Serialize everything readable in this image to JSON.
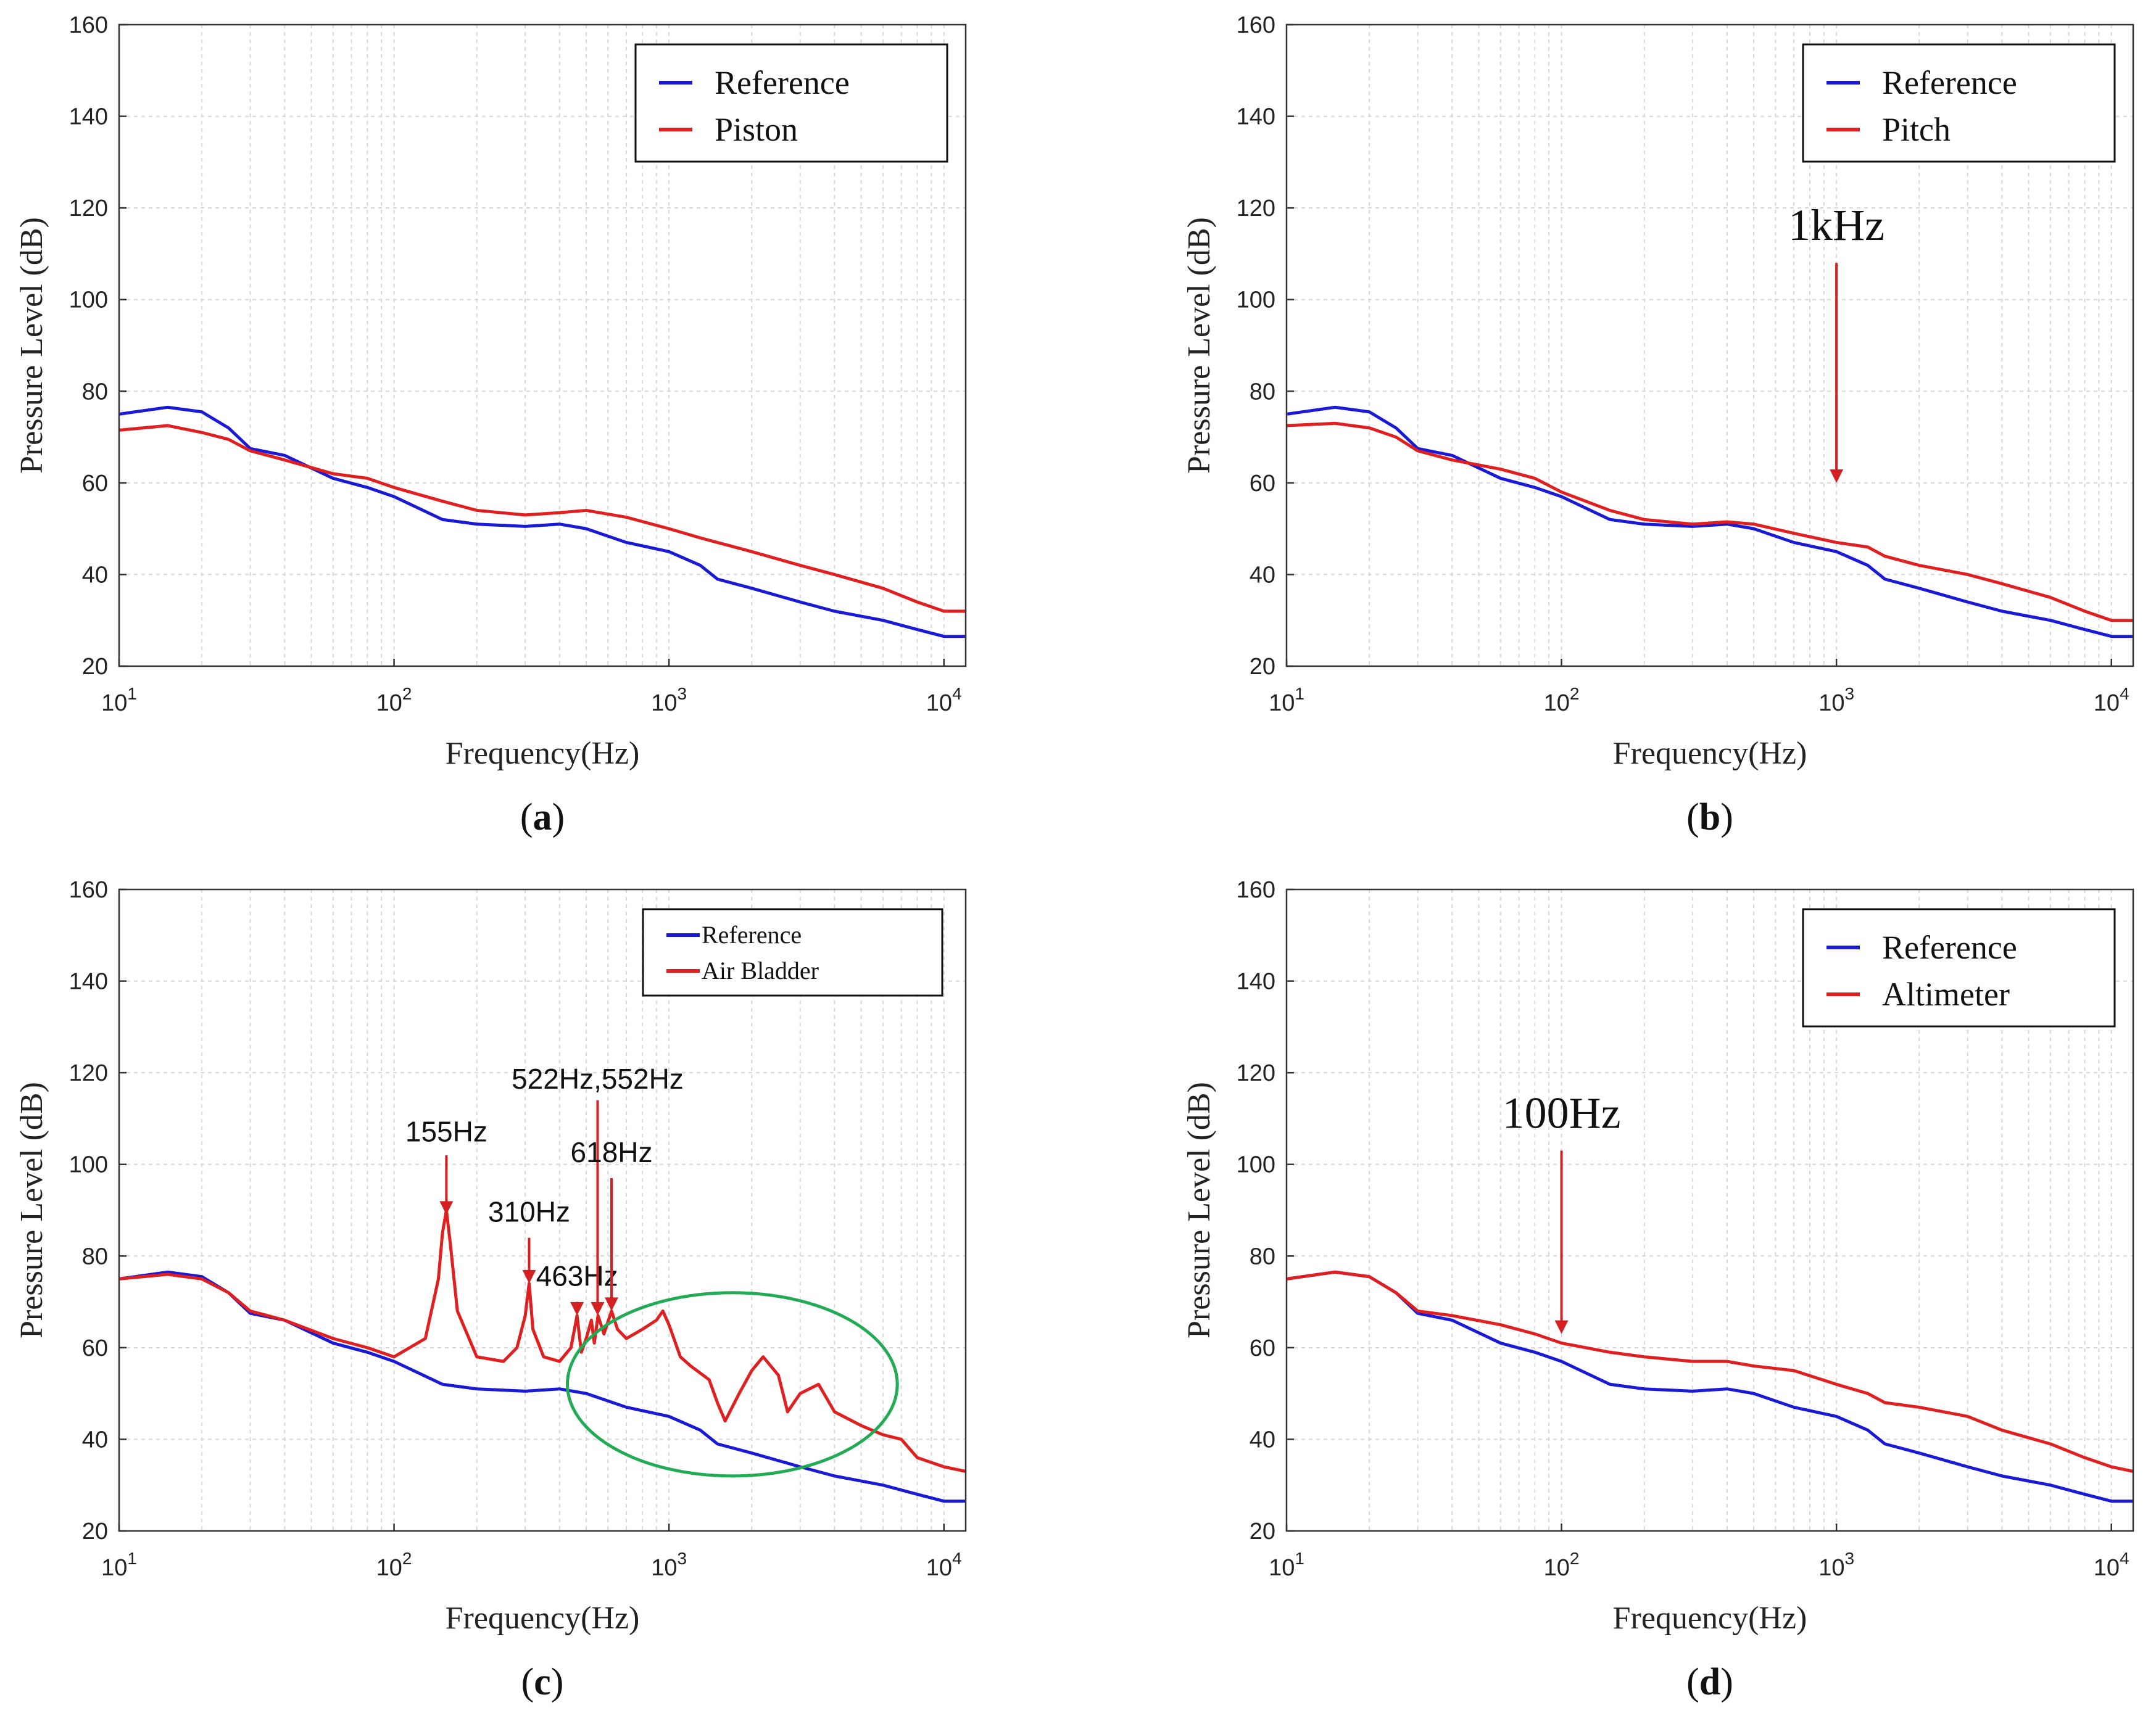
{
  "figure": {
    "background": "#ffffff"
  },
  "colors": {
    "reference": "#1a1ad6",
    "test": "#e02020",
    "annotation": "#d42020",
    "ellipse": "#22aa55",
    "grid": "#d8d8d8"
  },
  "chart_data": [
    {
      "type": "line",
      "panel_label": "(a)",
      "panel_letter": "a",
      "xlabel": "Frequency(Hz)",
      "ylabel": "Pressure Level (dB)",
      "xscale": "log",
      "xlim": [
        10,
        12000
      ],
      "ylim": [
        20,
        160
      ],
      "yticks": [
        20,
        40,
        60,
        80,
        100,
        120,
        140,
        160
      ],
      "xticks": [
        {
          "value": 10,
          "base": "10",
          "exp": "1"
        },
        {
          "value": 100,
          "base": "10",
          "exp": "2"
        },
        {
          "value": 1000,
          "base": "10",
          "exp": "3"
        },
        {
          "value": 10000,
          "base": "10",
          "exp": "4"
        }
      ],
      "grid": true,
      "legend_position": "top-right",
      "series": [
        {
          "name": "Reference",
          "color": "#1a1ad6",
          "x": [
            10,
            15,
            20,
            25,
            30,
            40,
            60,
            80,
            100,
            150,
            200,
            300,
            400,
            500,
            700,
            1000,
            1300,
            1500,
            2000,
            3000,
            4000,
            6000,
            8000,
            10000,
            12000
          ],
          "y": [
            75,
            76.5,
            75.5,
            72,
            67.5,
            66,
            61,
            59,
            57,
            52,
            51,
            50.5,
            51,
            50,
            47,
            45,
            42,
            39,
            37,
            34,
            32,
            30,
            28,
            26.5,
            26.5
          ]
        },
        {
          "name": "Piston",
          "color": "#e02020",
          "x": [
            10,
            15,
            20,
            25,
            30,
            40,
            60,
            80,
            100,
            150,
            200,
            300,
            400,
            500,
            700,
            1000,
            1300,
            1500,
            2000,
            3000,
            4000,
            6000,
            8000,
            10000,
            12000
          ],
          "y": [
            71.5,
            72.5,
            71,
            69.5,
            67,
            65,
            62,
            61,
            59,
            56,
            54,
            53,
            53.5,
            54,
            52.5,
            50,
            48,
            47,
            45,
            42,
            40,
            37,
            34,
            32,
            32
          ]
        }
      ]
    },
    {
      "type": "line",
      "panel_label": "(b)",
      "panel_letter": "b",
      "xlabel": "Frequency(Hz)",
      "ylabel": "Pressure Level (dB)",
      "xscale": "log",
      "xlim": [
        10,
        12000
      ],
      "ylim": [
        20,
        160
      ],
      "yticks": [
        20,
        40,
        60,
        80,
        100,
        120,
        140,
        160
      ],
      "xticks": [
        {
          "value": 10,
          "base": "10",
          "exp": "1"
        },
        {
          "value": 100,
          "base": "10",
          "exp": "2"
        },
        {
          "value": 1000,
          "base": "10",
          "exp": "3"
        },
        {
          "value": 10000,
          "base": "10",
          "exp": "4"
        }
      ],
      "grid": true,
      "legend_position": "top-right",
      "annotations": [
        {
          "text": "1kHz",
          "x": 1000,
          "y_text": 113,
          "y_from": 108,
          "y_to": 60,
          "font": "serif"
        }
      ],
      "series": [
        {
          "name": "Reference",
          "color": "#1a1ad6",
          "x": [
            10,
            15,
            20,
            25,
            30,
            40,
            60,
            80,
            100,
            150,
            200,
            300,
            400,
            500,
            700,
            1000,
            1300,
            1500,
            2000,
            3000,
            4000,
            6000,
            8000,
            10000,
            12000
          ],
          "y": [
            75,
            76.5,
            75.5,
            72,
            67.5,
            66,
            61,
            59,
            57,
            52,
            51,
            50.5,
            51,
            50,
            47,
            45,
            42,
            39,
            37,
            34,
            32,
            30,
            28,
            26.5,
            26.5
          ]
        },
        {
          "name": "Pitch",
          "color": "#e02020",
          "x": [
            10,
            15,
            20,
            25,
            30,
            40,
            60,
            80,
            100,
            150,
            200,
            300,
            400,
            500,
            700,
            1000,
            1300,
            1500,
            2000,
            3000,
            4000,
            6000,
            8000,
            10000,
            12000
          ],
          "y": [
            72.5,
            73,
            72,
            70,
            67,
            65,
            63,
            61,
            58,
            54,
            52,
            51,
            51.5,
            51,
            49,
            47,
            46,
            44,
            42,
            40,
            38,
            35,
            32,
            30,
            30
          ]
        }
      ]
    },
    {
      "type": "line",
      "panel_label": "(c)",
      "panel_letter": "c",
      "xlabel": "Frequency(Hz)",
      "ylabel": "Pressure Level (dB)",
      "xscale": "log",
      "xlim": [
        10,
        12000
      ],
      "ylim": [
        20,
        160
      ],
      "yticks": [
        20,
        40,
        60,
        80,
        100,
        120,
        140,
        160
      ],
      "xticks": [
        {
          "value": 10,
          "base": "10",
          "exp": "1"
        },
        {
          "value": 100,
          "base": "10",
          "exp": "2"
        },
        {
          "value": 1000,
          "base": "10",
          "exp": "3"
        },
        {
          "value": 10000,
          "base": "10",
          "exp": "4"
        }
      ],
      "grid": true,
      "legend_position": "top-right",
      "annotations": [
        {
          "text": "155Hz",
          "x": 155,
          "y_text": 105,
          "y_from": 102,
          "y_to": 89,
          "font": "sans"
        },
        {
          "text": "310Hz",
          "x": 310,
          "y_text": 87.5,
          "y_from": 84,
          "y_to": 74,
          "font": "sans"
        },
        {
          "text": "463Hz",
          "x": 463,
          "y_text": 73.5,
          "y_from": 70,
          "y_to": 67,
          "font": "sans"
        },
        {
          "text": "522Hz,552Hz",
          "x": 550,
          "y_text": 116.5,
          "y_from": 114,
          "y_to": 67,
          "font": "sans"
        },
        {
          "text": "618Hz",
          "x": 618,
          "y_text": 100.5,
          "y_from": 97,
          "y_to": 68,
          "font": "sans"
        }
      ],
      "highlight_ellipse": {
        "center_x": 1700,
        "center_y": 52,
        "half_width_decades": 0.6,
        "half_height_db": 20
      },
      "series": [
        {
          "name": "Reference",
          "color": "#1a1ad6",
          "x": [
            10,
            15,
            20,
            25,
            30,
            40,
            60,
            80,
            100,
            150,
            200,
            300,
            400,
            500,
            700,
            1000,
            1300,
            1500,
            2000,
            3000,
            4000,
            6000,
            8000,
            10000,
            12000
          ],
          "y": [
            75,
            76.5,
            75.5,
            72,
            67.5,
            66,
            61,
            59,
            57,
            52,
            51,
            50.5,
            51,
            50,
            47,
            45,
            42,
            39,
            37,
            34,
            32,
            30,
            28,
            26.5,
            26.5
          ]
        },
        {
          "name": "Air Bladder",
          "color": "#e02020",
          "x": [
            10,
            15,
            20,
            25,
            30,
            40,
            60,
            80,
            100,
            130,
            145,
            150,
            155,
            160,
            170,
            200,
            250,
            280,
            300,
            310,
            320,
            350,
            400,
            440,
            463,
            480,
            500,
            522,
            535,
            552,
            580,
            618,
            650,
            700,
            800,
            900,
            950,
            1000,
            1100,
            1200,
            1400,
            1500,
            1600,
            1800,
            2000,
            2200,
            2500,
            2700,
            3000,
            3500,
            4000,
            5000,
            6000,
            7000,
            8000,
            10000,
            12000
          ],
          "y": [
            75,
            76,
            75,
            72,
            68,
            66,
            62,
            60,
            58,
            62,
            75,
            85,
            90,
            83,
            68,
            58,
            57,
            60,
            67,
            74,
            64,
            58,
            57,
            60,
            67,
            59,
            62,
            66,
            61,
            67,
            63,
            68,
            64,
            62,
            64,
            66,
            68,
            65,
            58,
            56,
            53,
            48,
            44,
            50,
            55,
            58,
            54,
            46,
            50,
            52,
            46,
            43,
            41,
            40,
            36,
            34,
            33
          ]
        }
      ]
    },
    {
      "type": "line",
      "panel_label": "(d)",
      "panel_letter": "d",
      "xlabel": "Frequency(Hz)",
      "ylabel": "Pressure Level (dB)",
      "xscale": "log",
      "xlim": [
        10,
        12000
      ],
      "ylim": [
        20,
        160
      ],
      "yticks": [
        20,
        40,
        60,
        80,
        100,
        120,
        140,
        160
      ],
      "xticks": [
        {
          "value": 10,
          "base": "10",
          "exp": "1"
        },
        {
          "value": 100,
          "base": "10",
          "exp": "2"
        },
        {
          "value": 1000,
          "base": "10",
          "exp": "3"
        },
        {
          "value": 10000,
          "base": "10",
          "exp": "4"
        }
      ],
      "grid": true,
      "legend_position": "top-right",
      "annotations": [
        {
          "text": "100Hz",
          "x": 100,
          "y_text": 108,
          "y_from": 103,
          "y_to": 63,
          "font": "serif"
        }
      ],
      "series": [
        {
          "name": "Reference",
          "color": "#1a1ad6",
          "x": [
            10,
            15,
            20,
            25,
            30,
            40,
            60,
            80,
            100,
            150,
            200,
            300,
            400,
            500,
            700,
            1000,
            1300,
            1500,
            2000,
            3000,
            4000,
            6000,
            8000,
            10000,
            12000
          ],
          "y": [
            75,
            76.5,
            75.5,
            72,
            67.5,
            66,
            61,
            59,
            57,
            52,
            51,
            50.5,
            51,
            50,
            47,
            45,
            42,
            39,
            37,
            34,
            32,
            30,
            28,
            26.5,
            26.5
          ]
        },
        {
          "name": "Altimeter",
          "color": "#e02020",
          "x": [
            10,
            15,
            20,
            25,
            30,
            40,
            60,
            80,
            100,
            150,
            200,
            300,
            400,
            500,
            700,
            1000,
            1300,
            1500,
            2000,
            3000,
            4000,
            6000,
            8000,
            10000,
            12000
          ],
          "y": [
            75,
            76.5,
            75.5,
            72,
            68,
            67,
            65,
            63,
            61,
            59,
            58,
            57,
            57,
            56,
            55,
            52,
            50,
            48,
            47,
            45,
            42,
            39,
            36,
            34,
            33
          ]
        }
      ]
    }
  ]
}
